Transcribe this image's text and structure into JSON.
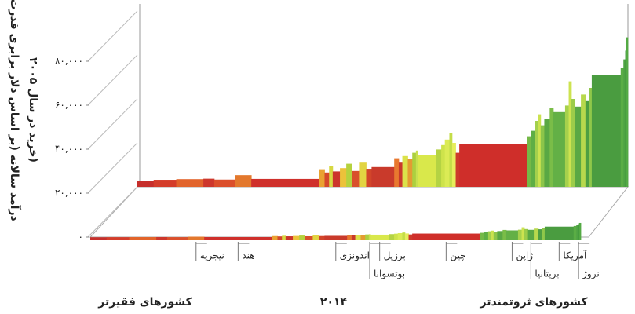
{
  "chart_data": {
    "type": "bar",
    "ylabel": [
      "درآمد سالانه (بر اساس دلار برابری قدرت",
      "خرید در سال ۲۰۰۵)"
    ],
    "categories": [
      null,
      null,
      null,
      null,
      null,
      "نیجریه",
      "هند",
      null,
      null,
      null,
      null,
      null,
      null,
      null,
      null,
      null,
      "اندونزی",
      null,
      null,
      null,
      null,
      null,
      "بوتسوانا",
      "برزیل",
      null,
      null,
      null,
      null,
      null,
      null,
      "چین",
      null,
      null,
      null,
      null,
      null,
      null,
      null,
      "ژاپن",
      null,
      null,
      null,
      "بریتانیا",
      null,
      null,
      null,
      "آمریکا",
      null,
      null,
      "نروژ",
      null
    ],
    "values": [
      2800,
      3200,
      3500,
      3700,
      3300,
      5300,
      3600,
      8000,
      6500,
      9500,
      7000,
      8500,
      10500,
      7200,
      11000,
      8200,
      9000,
      13000,
      11000,
      14000,
      12500,
      15500,
      16500,
      14500,
      17000,
      19000,
      21500,
      24500,
      20000,
      15500,
      19500,
      23000,
      25500,
      30000,
      33000,
      28000,
      31000,
      36000,
      34000,
      37000,
      48000,
      40000,
      36500,
      42000,
      39000,
      45000,
      51000,
      54000,
      58000,
      62000,
      68000
    ],
    "population": [
      180,
      250,
      300,
      120,
      230,
      180,
      750,
      60,
      50,
      40,
      80,
      70,
      60,
      90,
      70,
      60,
      250,
      50,
      40,
      60,
      50,
      40,
      20,
      200,
      60,
      40,
      50,
      30,
      40,
      40,
      750,
      40,
      50,
      30,
      30,
      40,
      60,
      40,
      130,
      40,
      30,
      40,
      65,
      50,
      40,
      30,
      320,
      30,
      20,
      10,
      20
    ],
    "colors": [
      "#c62f2b",
      "#d43d2a",
      "#e2642b",
      "#cd372c",
      "#db4f2b",
      "#e3782d",
      "#cf302b",
      "#e9a231",
      "#d5482b",
      "#d6d842",
      "#cc352c",
      "#ecc23a",
      "#b5d23e",
      "#d9502b",
      "#e2d442",
      "#d2452a",
      "#c93a2b",
      "#e8782f",
      "#c9392c",
      "#dbe24a",
      "#e39c32",
      "#acd03f",
      "#c8e050",
      "#d9e84b",
      "#b4d343",
      "#cee34b",
      "#dbeb55",
      "#c4dd48",
      "#e6ed5c",
      "#cd3a2b",
      "#cf2e2a",
      "#74b947",
      "#5eae45",
      "#a3d04c",
      "#cbe24f",
      "#8cc54a",
      "#5aa844",
      "#7abd48",
      "#63b046",
      "#a6d14c",
      "#cde350",
      "#9ccc4a",
      "#5aa844",
      "#b8d84d",
      "#4e9f42",
      "#8fc74a",
      "#4a9c40",
      "#5aad45",
      "#4fa343",
      "#3f963c",
      "#54aa44"
    ],
    "ylim": [
      0,
      80000
    ],
    "yticks": [
      {
        "value": 0,
        "label": "۰"
      },
      {
        "value": 20000,
        "label": "۲۰,۰۰۰"
      },
      {
        "value": 40000,
        "label": "۴۰,۰۰۰"
      },
      {
        "value": 60000,
        "label": "۶۰,۰۰۰"
      },
      {
        "value": 80000,
        "label": "۸۰,۰۰۰"
      }
    ],
    "left_label": "کشورهای فقیرتر",
    "year": "۲۰۱۴",
    "right_label": "کشورهای ثروتمندتر"
  }
}
